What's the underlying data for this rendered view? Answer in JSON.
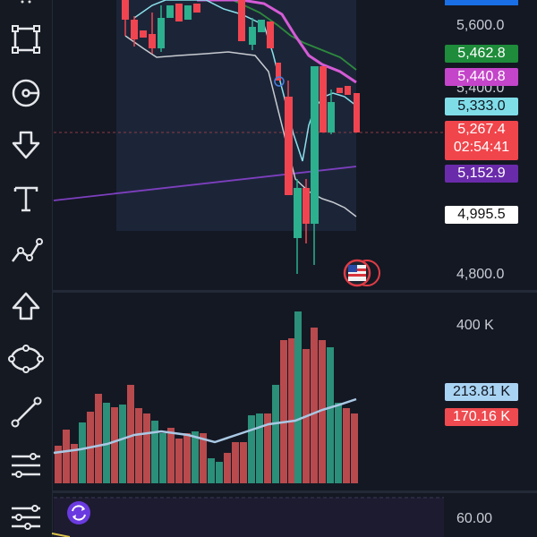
{
  "price_axis": {
    "labels": [
      "5,600.0",
      "5,400.0",
      "4,800.0"
    ]
  },
  "price_badges": [
    {
      "value": "5,462.8",
      "color": "#1e8c3a",
      "text_color": "#ffffff"
    },
    {
      "value": "5,440.8",
      "color": "#c445c9",
      "text_color": "#ffffff"
    },
    {
      "value": "5,333.0",
      "color": "#7fdde8",
      "text_color": "#10151f"
    },
    {
      "value": "5,267.4",
      "color": "#f0454b",
      "text_color": "#ffffff",
      "timer": "02:54:41"
    },
    {
      "value": "5,152.9",
      "color": "#6a2bab",
      "text_color": "#ffffff"
    },
    {
      "value": "4,995.5",
      "color": "#ffffff",
      "text_color": "#111111"
    }
  ],
  "volume_axis": {
    "labels": [
      "400 K"
    ],
    "badges": [
      {
        "value": "213.81 K",
        "color": "#a9d3f2",
        "text_color": "#10151f"
      },
      {
        "value": "170.16 K",
        "color": "#ee4a4f",
        "text_color": "#ffffff"
      }
    ]
  },
  "oscillator_axis": {
    "labels": [
      "60.00"
    ]
  },
  "toolbar": {
    "tools": [
      "rectangle-icon",
      "circle-target-icon",
      "arrow-down-icon",
      "text-icon",
      "trend-lines-icon",
      "arrow-up-icon",
      "ellipse-icon",
      "trend-line-icon",
      "fib-retracement-icon",
      "parallel-channel-icon"
    ]
  },
  "indicators": {
    "flag_icon": "us-flag-icon",
    "refresh_icon": "refresh-icon"
  },
  "colors": {
    "background": "#141823",
    "bull": "#2cb08e",
    "bear": "#f04550",
    "vol_bull": "#2b8f79",
    "vol_bear": "#b84a4d",
    "ma_purple": "#d55bd6",
    "ma_green": "#2d8a3c",
    "band_cyan": "#8ae0ea",
    "band_grey": "#c8cbd0",
    "ma_violet": "#7d3fbf"
  }
}
